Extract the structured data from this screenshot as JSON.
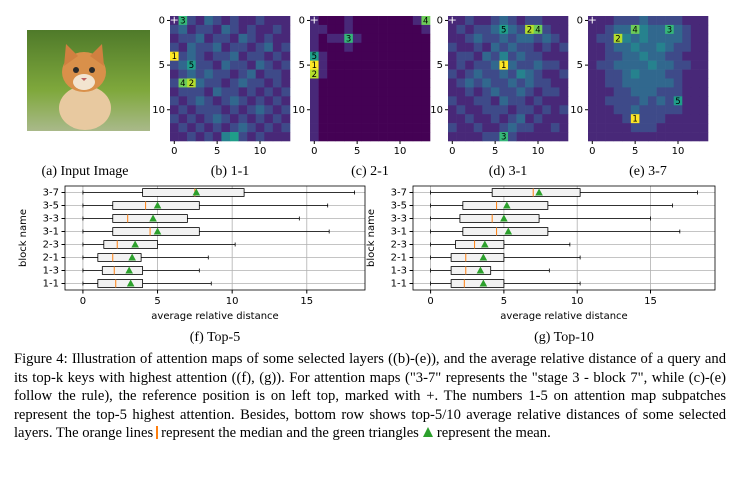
{
  "figure": {
    "image_caption": "(a) Input Image",
    "caption": [
      "Figure 4: Illustration of attention maps of some selected layers ((b)-(e)), and the average relative distance of a query and its top-k keys with highest attention ((f), (g)). For attention maps (\"3-7\" represents the \"stage 3 - block 7\", while (c)-(e) follow the rule), the reference position is on left top, marked with +. The numbers 1-5 on attention map subpatches represent the top-5 highest attention. Besides, bottom row shows top-5/10 average relative distances of some selected layers. The orange lines",
      "represent the median and the green triangles",
      "represent the mean."
    ]
  },
  "chart_data": [
    {
      "type": "heatmap",
      "caption": "(b) 1-1",
      "xlim": [
        -0.5,
        13.5
      ],
      "ylim": [
        -0.5,
        13.5
      ],
      "xticks": [
        0,
        5,
        10
      ],
      "yticks": [
        0,
        5,
        10
      ],
      "reference_label": "+",
      "annotations": [
        {
          "text": "1",
          "row": 4,
          "col": 0
        },
        {
          "text": "2",
          "row": 7,
          "col": 2
        },
        {
          "text": "3",
          "row": 0,
          "col": 1
        },
        {
          "text": "4",
          "row": 7,
          "col": 1
        },
        {
          "text": "5",
          "row": 5,
          "col": 2
        }
      ],
      "matrix": [
        [
          1,
          6,
          2,
          1,
          3,
          2,
          1,
          2,
          1,
          1,
          2,
          1,
          1,
          1
        ],
        [
          2,
          3,
          1,
          2,
          2,
          1,
          3,
          2,
          1,
          2,
          1,
          1,
          2,
          1
        ],
        [
          1,
          2,
          2,
          3,
          1,
          2,
          2,
          1,
          3,
          2,
          1,
          2,
          1,
          1
        ],
        [
          2,
          1,
          3,
          2,
          2,
          3,
          1,
          2,
          2,
          1,
          2,
          3,
          1,
          2
        ],
        [
          9,
          2,
          3,
          2,
          1,
          2,
          2,
          3,
          1,
          2,
          2,
          1,
          2,
          1
        ],
        [
          2,
          3,
          5,
          2,
          2,
          1,
          3,
          2,
          2,
          1,
          3,
          2,
          1,
          2
        ],
        [
          1,
          2,
          3,
          2,
          3,
          2,
          2,
          1,
          2,
          3,
          1,
          2,
          2,
          1
        ],
        [
          2,
          7,
          8,
          3,
          2,
          2,
          1,
          2,
          3,
          2,
          2,
          1,
          2,
          1
        ],
        [
          1,
          2,
          2,
          2,
          1,
          3,
          2,
          2,
          1,
          2,
          1,
          2,
          1,
          2
        ],
        [
          2,
          1,
          2,
          3,
          2,
          1,
          2,
          3,
          2,
          1,
          2,
          1,
          2,
          1
        ],
        [
          1,
          2,
          1,
          2,
          2,
          2,
          1,
          2,
          1,
          2,
          3,
          2,
          1,
          2
        ],
        [
          2,
          1,
          2,
          1,
          2,
          3,
          2,
          1,
          2,
          1,
          2,
          1,
          2,
          1
        ],
        [
          1,
          2,
          1,
          2,
          1,
          2,
          1,
          2,
          3,
          2,
          1,
          2,
          1,
          2
        ],
        [
          1,
          1,
          2,
          1,
          2,
          1,
          4,
          5,
          2,
          1,
          2,
          1,
          1,
          1
        ]
      ]
    },
    {
      "type": "heatmap",
      "caption": "(c) 2-1",
      "xlim": [
        -0.5,
        13.5
      ],
      "ylim": [
        -0.5,
        13.5
      ],
      "xticks": [
        0,
        5,
        10
      ],
      "yticks": [
        0,
        5,
        10
      ],
      "reference_label": "+",
      "annotations": [
        {
          "text": "1",
          "row": 5,
          "col": 0
        },
        {
          "text": "2",
          "row": 6,
          "col": 0
        },
        {
          "text": "3",
          "row": 2,
          "col": 4
        },
        {
          "text": "4",
          "row": 0,
          "col": 13
        },
        {
          "text": "5",
          "row": 4,
          "col": 0
        }
      ],
      "matrix": [
        [
          1,
          0,
          0,
          0,
          1,
          0,
          0,
          0,
          0,
          0,
          0,
          0,
          1,
          7
        ],
        [
          1,
          1,
          0,
          0,
          1,
          0,
          0,
          0,
          0,
          0,
          0,
          0,
          0,
          1
        ],
        [
          1,
          0,
          1,
          1,
          6,
          1,
          0,
          0,
          0,
          0,
          0,
          0,
          0,
          0
        ],
        [
          1,
          0,
          0,
          0,
          1,
          0,
          0,
          0,
          0,
          0,
          0,
          0,
          0,
          0
        ],
        [
          5,
          1,
          0,
          0,
          0,
          0,
          0,
          0,
          0,
          0,
          0,
          0,
          0,
          0
        ],
        [
          9,
          1,
          0,
          0,
          0,
          0,
          0,
          0,
          0,
          0,
          0,
          0,
          0,
          0
        ],
        [
          8,
          1,
          0,
          0,
          0,
          0,
          0,
          0,
          0,
          0,
          0,
          0,
          0,
          0
        ],
        [
          1,
          0,
          0,
          0,
          0,
          0,
          0,
          0,
          0,
          0,
          0,
          0,
          0,
          0
        ],
        [
          1,
          0,
          0,
          0,
          0,
          0,
          0,
          0,
          0,
          0,
          0,
          0,
          0,
          0
        ],
        [
          1,
          0,
          0,
          0,
          0,
          0,
          0,
          0,
          0,
          0,
          0,
          0,
          0,
          0
        ],
        [
          1,
          0,
          0,
          0,
          0,
          0,
          0,
          0,
          0,
          0,
          0,
          0,
          0,
          0
        ],
        [
          1,
          0,
          0,
          0,
          0,
          0,
          0,
          0,
          0,
          0,
          0,
          0,
          0,
          0
        ],
        [
          1,
          0,
          0,
          0,
          0,
          0,
          0,
          0,
          0,
          0,
          0,
          0,
          0,
          0
        ],
        [
          1,
          0,
          0,
          0,
          0,
          0,
          0,
          0,
          0,
          0,
          0,
          0,
          0,
          0
        ]
      ]
    },
    {
      "type": "heatmap",
      "caption": "(d) 3-1",
      "xlim": [
        -0.5,
        13.5
      ],
      "ylim": [
        -0.5,
        13.5
      ],
      "xticks": [
        0,
        5,
        10
      ],
      "yticks": [
        0,
        5,
        10
      ],
      "reference_label": "+",
      "annotations": [
        {
          "text": "1",
          "row": 5,
          "col": 6
        },
        {
          "text": "2",
          "row": 1,
          "col": 9
        },
        {
          "text": "3",
          "row": 13,
          "col": 6
        },
        {
          "text": "4",
          "row": 1,
          "col": 10
        },
        {
          "text": "5",
          "row": 1,
          "col": 6
        }
      ],
      "matrix": [
        [
          1,
          1,
          2,
          1,
          1,
          2,
          3,
          2,
          1,
          2,
          2,
          1,
          1,
          1
        ],
        [
          1,
          2,
          1,
          2,
          2,
          3,
          5,
          3,
          2,
          8,
          7,
          2,
          1,
          1
        ],
        [
          1,
          1,
          2,
          3,
          2,
          2,
          3,
          2,
          3,
          3,
          2,
          3,
          2,
          1
        ],
        [
          2,
          1,
          1,
          2,
          1,
          3,
          2,
          3,
          2,
          2,
          1,
          2,
          1,
          2
        ],
        [
          1,
          2,
          2,
          1,
          3,
          2,
          4,
          2,
          3,
          2,
          2,
          1,
          1,
          1
        ],
        [
          1,
          2,
          1,
          2,
          2,
          3,
          9,
          3,
          2,
          2,
          3,
          2,
          2,
          1
        ],
        [
          2,
          1,
          2,
          3,
          2,
          2,
          3,
          2,
          4,
          3,
          2,
          1,
          1,
          2
        ],
        [
          1,
          2,
          3,
          2,
          3,
          2,
          2,
          3,
          2,
          3,
          2,
          2,
          1,
          1
        ],
        [
          1,
          1,
          2,
          1,
          2,
          3,
          2,
          2,
          3,
          2,
          1,
          2,
          2,
          1
        ],
        [
          2,
          1,
          1,
          2,
          2,
          1,
          3,
          2,
          2,
          1,
          2,
          1,
          1,
          1
        ],
        [
          1,
          2,
          1,
          1,
          2,
          2,
          2,
          1,
          2,
          2,
          1,
          2,
          1,
          2
        ],
        [
          1,
          1,
          2,
          1,
          1,
          2,
          1,
          2,
          3,
          1,
          2,
          1,
          1,
          1
        ],
        [
          2,
          1,
          1,
          2,
          1,
          1,
          2,
          3,
          2,
          2,
          1,
          1,
          2,
          1
        ],
        [
          1,
          1,
          1,
          1,
          2,
          2,
          6,
          2,
          1,
          1,
          1,
          1,
          1,
          1
        ]
      ]
    },
    {
      "type": "heatmap",
      "caption": "(e) 3-7",
      "xlim": [
        -0.5,
        13.5
      ],
      "ylim": [
        -0.5,
        13.5
      ],
      "xticks": [
        0,
        5,
        10
      ],
      "yticks": [
        0,
        5,
        10
      ],
      "reference_label": "+",
      "annotations": [
        {
          "text": "1",
          "row": 11,
          "col": 5
        },
        {
          "text": "2",
          "row": 2,
          "col": 3
        },
        {
          "text": "3",
          "row": 1,
          "col": 9
        },
        {
          "text": "4",
          "row": 1,
          "col": 5
        },
        {
          "text": "5",
          "row": 9,
          "col": 10
        }
      ],
      "matrix": [
        [
          1,
          1,
          1,
          2,
          2,
          2,
          3,
          2,
          2,
          2,
          2,
          1,
          1,
          1
        ],
        [
          1,
          1,
          2,
          3,
          3,
          7,
          4,
          3,
          3,
          6,
          3,
          2,
          1,
          1
        ],
        [
          1,
          2,
          2,
          8,
          4,
          3,
          4,
          3,
          3,
          3,
          3,
          2,
          1,
          1
        ],
        [
          1,
          1,
          2,
          3,
          3,
          4,
          3,
          3,
          4,
          3,
          2,
          2,
          1,
          1
        ],
        [
          1,
          1,
          2,
          2,
          3,
          3,
          4,
          3,
          3,
          2,
          2,
          1,
          1,
          1
        ],
        [
          1,
          2,
          2,
          3,
          3,
          3,
          3,
          4,
          3,
          3,
          2,
          2,
          1,
          1
        ],
        [
          1,
          1,
          2,
          2,
          3,
          4,
          3,
          3,
          3,
          2,
          2,
          1,
          1,
          1
        ],
        [
          1,
          1,
          2,
          2,
          3,
          3,
          3,
          3,
          3,
          3,
          2,
          1,
          1,
          1
        ],
        [
          1,
          1,
          1,
          2,
          2,
          3,
          3,
          3,
          2,
          2,
          2,
          1,
          1,
          1
        ],
        [
          1,
          1,
          2,
          2,
          2,
          2,
          3,
          2,
          3,
          2,
          5,
          1,
          1,
          1
        ],
        [
          1,
          1,
          1,
          2,
          2,
          3,
          2,
          2,
          2,
          2,
          2,
          1,
          1,
          1
        ],
        [
          1,
          1,
          1,
          1,
          2,
          9,
          2,
          2,
          2,
          1,
          1,
          1,
          1,
          1
        ],
        [
          1,
          1,
          1,
          1,
          1,
          2,
          2,
          2,
          1,
          1,
          1,
          1,
          1,
          1
        ],
        [
          1,
          1,
          1,
          1,
          1,
          1,
          1,
          1,
          1,
          1,
          1,
          1,
          1,
          1
        ]
      ]
    },
    {
      "type": "box",
      "caption": "(f) Top-5",
      "xlabel": "average relative distance",
      "ylabel": "block name",
      "xlim": [
        -1.2,
        18.9
      ],
      "xticks": [
        0,
        5,
        10,
        15
      ],
      "grid": true,
      "categories": [
        "1-1",
        "1-3",
        "2-1",
        "2-3",
        "3-1",
        "3-3",
        "3-5",
        "3-7"
      ],
      "boxes": [
        {
          "whisker_low": 0,
          "q1": 1,
          "median": 2.2,
          "q3": 4,
          "whisker_high": 8.6,
          "mean": 3.2
        },
        {
          "whisker_low": 0,
          "q1": 1.3,
          "median": 2.1,
          "q3": 4,
          "whisker_high": 7.8,
          "mean": 3.1
        },
        {
          "whisker_low": 0,
          "q1": 1,
          "median": 2,
          "q3": 3.9,
          "whisker_high": 8.4,
          "mean": 3.3
        },
        {
          "whisker_low": 0,
          "q1": 1.4,
          "median": 2.3,
          "q3": 5,
          "whisker_high": 10.2,
          "mean": 3.5
        },
        {
          "whisker_low": 0,
          "q1": 2,
          "median": 4.5,
          "q3": 7.8,
          "whisker_high": 16.5,
          "mean": 5
        },
        {
          "whisker_low": 0,
          "q1": 2,
          "median": 3,
          "q3": 7,
          "whisker_high": 14.5,
          "mean": 4.7
        },
        {
          "whisker_low": 0,
          "q1": 2,
          "median": 4.2,
          "q3": 7.8,
          "whisker_high": 16.4,
          "mean": 5
        },
        {
          "whisker_low": 0,
          "q1": 4,
          "median": 7.5,
          "q3": 10.8,
          "whisker_high": 18.2,
          "mean": 7.6
        }
      ]
    },
    {
      "type": "box",
      "caption": "(g) Top-10",
      "xlabel": "average relative distance",
      "ylabel": "block name",
      "xlim": [
        -1.2,
        19.4
      ],
      "xticks": [
        0,
        5,
        10,
        15
      ],
      "grid": true,
      "categories": [
        "1-1",
        "1-3",
        "2-1",
        "2-3",
        "3-1",
        "3-3",
        "3-5",
        "3-7"
      ],
      "boxes": [
        {
          "whisker_low": 0,
          "q1": 1.4,
          "median": 2.3,
          "q3": 5,
          "whisker_high": 10.2,
          "mean": 3.6
        },
        {
          "whisker_low": 0,
          "q1": 1.4,
          "median": 2.4,
          "q3": 4.1,
          "whisker_high": 8.1,
          "mean": 3.4
        },
        {
          "whisker_low": 0,
          "q1": 1.4,
          "median": 2.4,
          "q3": 5,
          "whisker_high": 10.2,
          "mean": 3.6
        },
        {
          "whisker_low": 0,
          "q1": 1.7,
          "median": 3,
          "q3": 5,
          "whisker_high": 9.5,
          "mean": 3.7
        },
        {
          "whisker_low": 0,
          "q1": 2.2,
          "median": 4.5,
          "q3": 8,
          "whisker_high": 17,
          "mean": 5.3
        },
        {
          "whisker_low": 0,
          "q1": 2,
          "median": 4.2,
          "q3": 7.4,
          "whisker_high": 15,
          "mean": 5
        },
        {
          "whisker_low": 0,
          "q1": 2.2,
          "median": 4.5,
          "q3": 8,
          "whisker_high": 16.5,
          "mean": 5.2
        },
        {
          "whisker_low": 0,
          "q1": 4.2,
          "median": 7,
          "q3": 10.2,
          "whisker_high": 18.2,
          "mean": 7.4
        }
      ]
    }
  ]
}
